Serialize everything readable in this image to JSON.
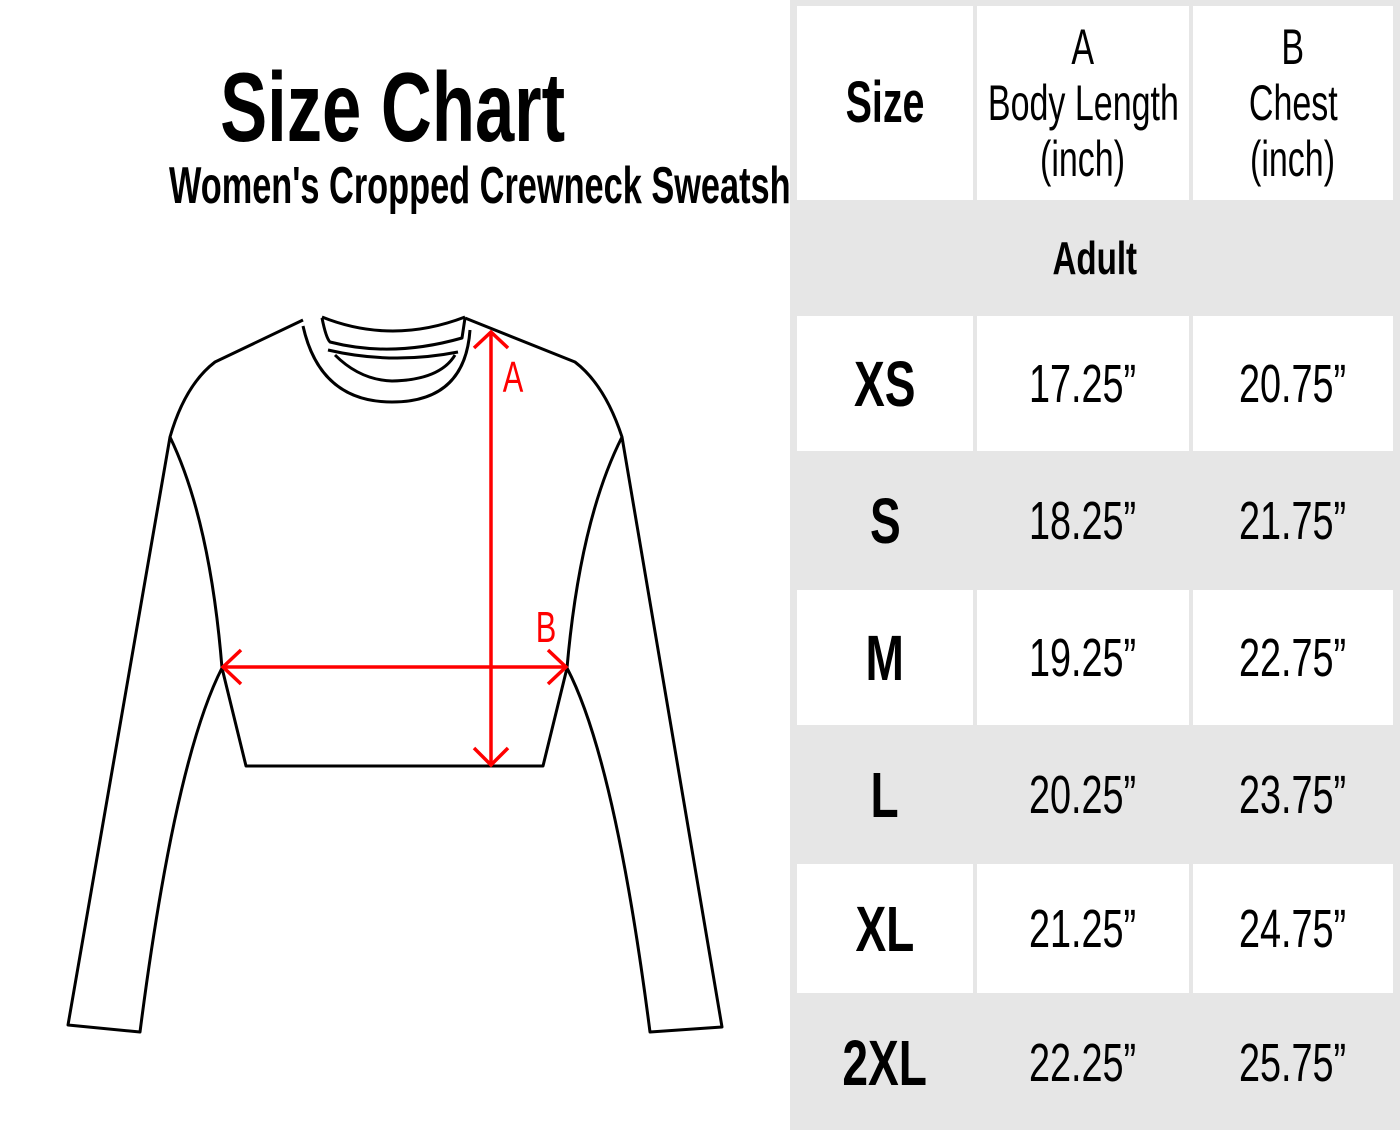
{
  "title": "Size Chart",
  "subtitle": "Women's Cropped Crewneck Sweatshirt",
  "diagram": {
    "label_a": "A",
    "label_b": "B",
    "measure_color": "#ff0000",
    "outline_color": "#000000"
  },
  "table": {
    "headers": {
      "size": "Size",
      "a_letter": "A",
      "a_name": "Body Length",
      "a_unit": "(inch)",
      "b_letter": "B",
      "b_name": "Chest",
      "b_unit": "(inch)"
    },
    "group": "Adult",
    "rows": [
      {
        "size": "XS",
        "a": "17.25”",
        "b": "20.75”"
      },
      {
        "size": "S",
        "a": "18.25”",
        "b": "21.75”"
      },
      {
        "size": "M",
        "a": "19.25”",
        "b": "22.75”"
      },
      {
        "size": "L",
        "a": "20.25”",
        "b": "23.75”"
      },
      {
        "size": "XL",
        "a": "21.25”",
        "b": "24.75”"
      },
      {
        "size": "2XL",
        "a": "22.25”",
        "b": "25.75”"
      }
    ],
    "colors": {
      "white": "#ffffff",
      "gray": "#e6e6e6"
    }
  }
}
